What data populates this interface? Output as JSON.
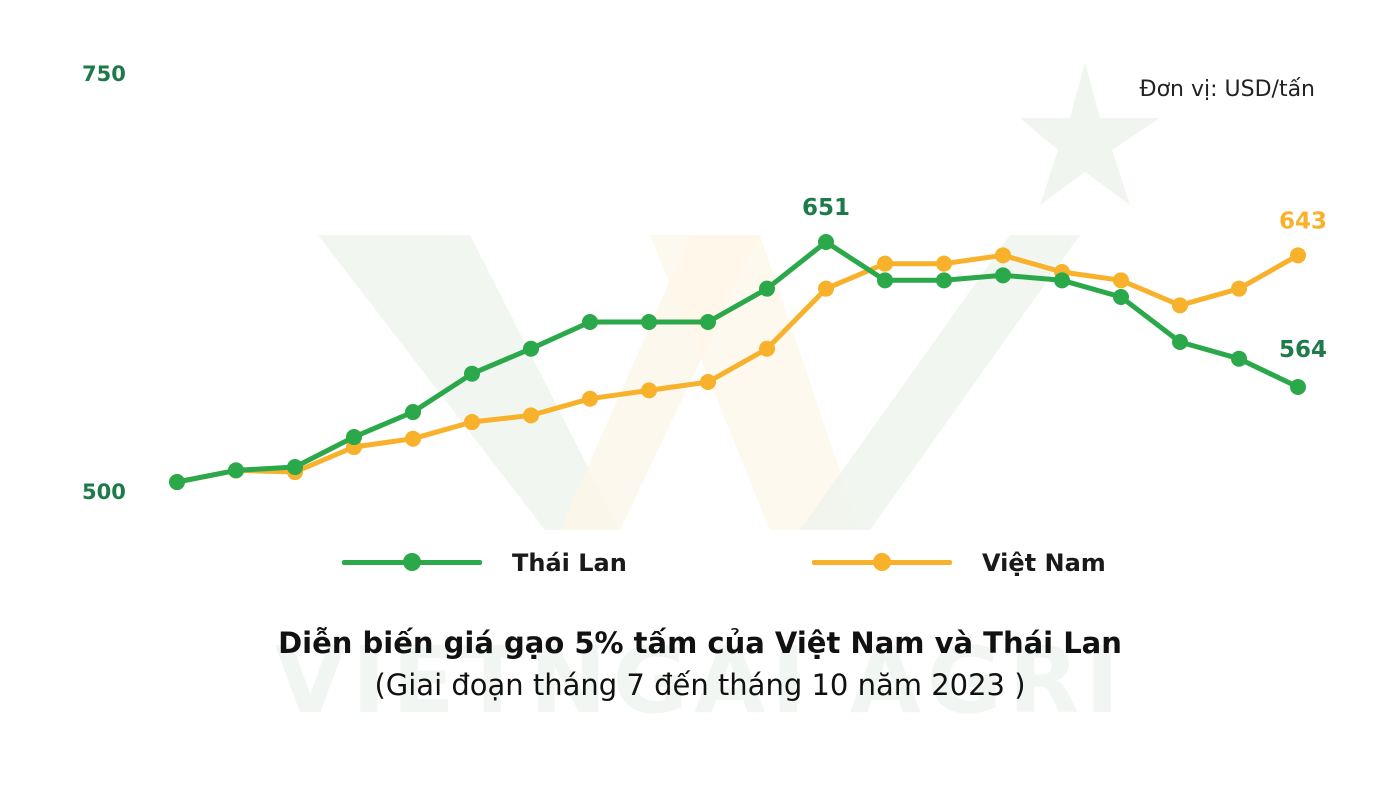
{
  "chart_data": {
    "type": "line",
    "title": "Diễn biến giá gạo 5% tấm của Việt Nam và Thái Lan",
    "subtitle": "(Giai đoạn tháng 7 đến tháng 10 năm 2023 )",
    "unit": "Đơn vị: USD/tấn",
    "xlabel": "",
    "ylabel": "",
    "ylim": [
      500,
      750
    ],
    "y_ticks": [
      "750",
      "500"
    ],
    "grid": false,
    "legend_position": "bottom",
    "x": [
      1,
      2,
      3,
      4,
      5,
      6,
      7,
      8,
      9,
      10,
      11,
      12,
      13,
      14,
      15,
      16,
      17,
      18,
      19,
      20
    ],
    "series": [
      {
        "name": "Thái Lan",
        "color": "#2aa84a",
        "values": [
          507,
          514,
          516,
          534,
          549,
          572,
          587,
          603,
          603,
          603,
          623,
          651,
          628,
          628,
          631,
          628,
          618,
          591,
          581,
          564
        ]
      },
      {
        "name": "Việt Nam",
        "color": "#f7b12a",
        "values": [
          507,
          514,
          513,
          528,
          533,
          543,
          547,
          557,
          562,
          567,
          587,
          623,
          638,
          638,
          643,
          633,
          628,
          613,
          623,
          643
        ]
      }
    ],
    "annotations": [
      {
        "text": "651",
        "series": "Thái Lan",
        "index": 11,
        "color": "#1e7a4a"
      },
      {
        "text": "564",
        "series": "Thái Lan",
        "index": 19,
        "color": "#1e7a4a"
      },
      {
        "text": "643",
        "series": "Việt Nam",
        "index": 19,
        "color": "#f7b12a"
      }
    ]
  },
  "axis": {
    "y_top_label": "750",
    "y_bottom_label": "500"
  },
  "legend": {
    "thai": "Thái Lan",
    "viet": "Việt Nam"
  },
  "labels": {
    "unit": "Đơn vị: USD/tấn",
    "title": "Diễn biến giá gạo 5% tấm của Việt Nam và Thái Lan",
    "subtitle": "(Giai đoạn tháng 7 đến tháng 10 năm 2023 )"
  },
  "colors": {
    "thai_line": "#2aa84a",
    "viet_line": "#f7b12a",
    "axis_label": "#1e7a4a"
  }
}
